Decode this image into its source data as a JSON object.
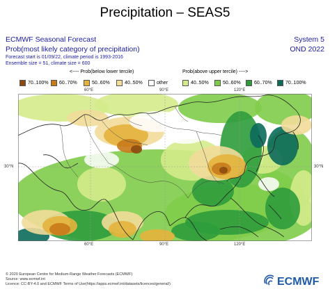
{
  "title": "Precipitation – SEAS5",
  "header": {
    "left_line1": "ECMWF Seasonal Forecast",
    "left_line2": "Prob(most likely category of precipitation)",
    "left_line3": "Forecast start is 01/09/22, climate period is 1993-2016",
    "left_line4": "Ensemble size = 51, climate size = 600",
    "right_line1": "System 5",
    "right_line2": "OND 2022"
  },
  "legend": {
    "below_caption": "<---- Prob(below lower tercile)",
    "above_caption": "Prob(above upper tercile) ---->",
    "items": [
      {
        "label": "70..100%",
        "color": "#8c4a10"
      },
      {
        "label": "60..70%",
        "color": "#c87a1a"
      },
      {
        "label": "50..60%",
        "color": "#e4b33c"
      },
      {
        "label": "40..50%",
        "color": "#f2dc9a"
      },
      {
        "label": "other",
        "color": "#ffffff"
      },
      {
        "label": "40..50%",
        "color": "#d4eb8a"
      },
      {
        "label": "50..60%",
        "color": "#7fcc4a"
      },
      {
        "label": "60..70%",
        "color": "#2e9c3c"
      },
      {
        "label": "70..100%",
        "color": "#0b6a5a"
      }
    ]
  },
  "map": {
    "top_ticks": [
      "60°E",
      "90°E",
      "120°E"
    ],
    "bottom_ticks": [
      "60°E",
      "90°E",
      "120°E"
    ],
    "left_ticks": [
      "30°N"
    ],
    "right_ticks": [
      "30°N"
    ]
  },
  "footer": {
    "line1": "© 2020 European Centre for Medium-Range Weather Forecasts (ECMWF)",
    "line2": "Source: www.ecmwf.int",
    "line3": "Licence: CC-BY-4.0 and ECMWF Terms of Use(https://apps.ecmwf.int/datasets/licences/general/)"
  },
  "logo": {
    "text": "ECMWF",
    "color": "#1f5aa6"
  }
}
